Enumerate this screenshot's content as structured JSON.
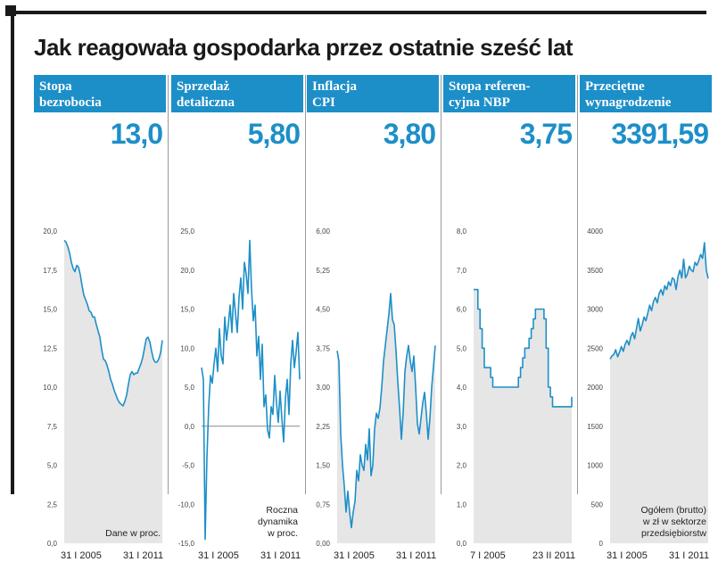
{
  "title": "Jak reagowała gospodarka przez ostatnie sześć lat",
  "colors": {
    "accent": "#1d8fc8",
    "area_fill": "#e6e6e6",
    "text": "#1a1a1a",
    "header_text": "#ffffff"
  },
  "panels": [
    {
      "header_lines": [
        "Stopa",
        "bezrobocia"
      ],
      "value": "13,0",
      "note_lines": [
        "Dane w proc."
      ],
      "x_labels": [
        "31 I 2005",
        "31 I 2011"
      ]
    },
    {
      "header_lines": [
        "Sprzedaż",
        "detaliczna"
      ],
      "value": "5,80",
      "note_lines": [
        "Roczna",
        "dynamika",
        "w proc."
      ],
      "x_labels": [
        "31 I 2005",
        "31 I 2011"
      ]
    },
    {
      "header_lines": [
        "Inflacja",
        "CPI"
      ],
      "value": "3,80",
      "note_lines": [],
      "x_labels": [
        "31 I 2005",
        "31 I 2011"
      ]
    },
    {
      "header_lines": [
        "Stopa referen-",
        "cyjna NBP"
      ],
      "value": "3,75",
      "note_lines": [],
      "x_labels": [
        "7 I 2005",
        "23 II 2011"
      ]
    },
    {
      "header_lines": [
        "Przeciętne",
        "wynagrodzenie"
      ],
      "value": "3391,59",
      "note_lines": [
        "Ogółem (brutto)",
        "w zł w sektorze",
        "przedsiębiorstw"
      ],
      "x_labels": [
        "31 I 2005",
        "31 I 2011"
      ]
    }
  ],
  "chart_data": [
    {
      "type": "area",
      "title": "Stopa bezrobocia",
      "ylim": [
        0,
        20
      ],
      "y_ticks": [
        "20,0",
        "17,5",
        "15,0",
        "12,5",
        "10,0",
        "7,5",
        "5,0",
        "2,5",
        "0,0"
      ],
      "baseline": null,
      "series": [
        {
          "values": [
            19.4,
            19.3,
            19.0,
            18.6,
            18.0,
            17.6,
            17.4,
            17.8,
            17.7,
            17.2,
            16.5,
            15.9,
            15.6,
            15.3,
            14.9,
            14.8,
            14.5,
            14.5,
            14.0,
            13.6,
            13.2,
            12.4,
            11.8,
            11.7,
            11.4,
            11.0,
            10.5,
            10.2,
            9.8,
            9.5,
            9.2,
            9.0,
            8.9,
            8.8,
            9.1,
            9.5,
            10.2,
            10.8,
            11.0,
            10.8,
            10.9,
            10.9,
            11.2,
            11.5,
            11.9,
            12.5,
            13.1,
            13.2,
            12.9,
            12.3,
            11.8,
            11.6,
            11.6,
            11.8,
            12.2,
            13.0
          ]
        }
      ],
      "x_tick_labels": [
        "31 I 2005",
        "31 I 2011"
      ]
    },
    {
      "type": "line",
      "title": "Sprzedaż detaliczna",
      "ylim": [
        -15,
        25
      ],
      "y_ticks": [
        "25,0",
        "20,0",
        "15,0",
        "10,0",
        "5,0",
        "0,0",
        "-5,0",
        "-10,0",
        "-15,0"
      ],
      "baseline": 0,
      "series": [
        {
          "values": [
            7.5,
            6.0,
            -14.5,
            -4.0,
            2.5,
            6.5,
            5.5,
            8.0,
            10.0,
            7.0,
            12.5,
            9.0,
            8.0,
            14.0,
            11.0,
            13.0,
            15.5,
            12.0,
            17.0,
            14.5,
            12.0,
            16.5,
            19.0,
            15.0,
            21.0,
            19.5,
            17.0,
            23.8,
            17.5,
            13.5,
            15.5,
            9.0,
            11.5,
            6.0,
            10.5,
            2.5,
            4.0,
            -0.5,
            -1.5,
            2.5,
            1.5,
            6.5,
            3.0,
            0.5,
            4.5,
            1.0,
            -2.0,
            3.5,
            6.0,
            1.5,
            8.0,
            11.0,
            7.5,
            9.5,
            12.0,
            6.0
          ]
        }
      ],
      "x_tick_labels": [
        "31 I 2005",
        "31 I 2011"
      ]
    },
    {
      "type": "area",
      "title": "Inflacja CPI",
      "ylim": [
        0,
        6
      ],
      "y_ticks": [
        "6,00",
        "5,25",
        "4,50",
        "3,75",
        "3,00",
        "2,25",
        "1,50",
        "0,75",
        "0,00"
      ],
      "baseline": null,
      "series": [
        {
          "values": [
            3.7,
            3.5,
            2.1,
            1.5,
            1.1,
            0.6,
            1.0,
            0.6,
            0.3,
            0.6,
            0.8,
            1.4,
            1.2,
            1.7,
            1.5,
            1.4,
            1.9,
            1.6,
            2.2,
            1.3,
            1.5,
            2.2,
            2.5,
            2.4,
            2.6,
            3.0,
            3.5,
            3.8,
            4.1,
            4.4,
            4.8,
            4.3,
            4.2,
            3.7,
            3.1,
            2.6,
            2.0,
            2.5,
            3.3,
            3.6,
            3.8,
            3.5,
            3.3,
            3.6,
            3.0,
            2.3,
            2.1,
            2.4,
            2.7,
            2.9,
            2.5,
            2.0,
            2.4,
            3.0,
            3.4,
            3.8
          ]
        }
      ],
      "x_tick_labels": [
        "31 I 2005",
        "31 I 2011"
      ]
    },
    {
      "type": "area",
      "title": "Stopa referencyjna NBP",
      "ylim": [
        0,
        8
      ],
      "y_ticks": [
        "8,0",
        "7,0",
        "6,0",
        "5,0",
        "4,0",
        "3,0",
        "2,0",
        "1,0",
        "0,0"
      ],
      "step": true,
      "baseline": null,
      "series": [
        {
          "values": [
            6.5,
            6.5,
            6.0,
            5.5,
            5.0,
            4.5,
            4.5,
            4.5,
            4.25,
            4.0,
            4.0,
            4.0,
            4.0,
            4.0,
            4.0,
            4.0,
            4.0,
            4.0,
            4.0,
            4.0,
            4.0,
            4.25,
            4.5,
            4.75,
            5.0,
            5.0,
            5.25,
            5.5,
            5.75,
            6.0,
            6.0,
            6.0,
            6.0,
            5.75,
            5.0,
            4.0,
            3.75,
            3.5,
            3.5,
            3.5,
            3.5,
            3.5,
            3.5,
            3.5,
            3.5,
            3.5,
            3.75
          ]
        }
      ],
      "x_tick_labels": [
        "7 I 2005",
        "23 II 2011"
      ]
    },
    {
      "type": "area",
      "title": "Przeciętne wynagrodzenie",
      "ylim": [
        0,
        4000
      ],
      "y_ticks": [
        "4000",
        "3500",
        "3000",
        "2500",
        "2000",
        "1500",
        "1000",
        "500",
        "0"
      ],
      "baseline": null,
      "series": [
        {
          "values": [
            2360,
            2400,
            2420,
            2480,
            2390,
            2450,
            2520,
            2460,
            2550,
            2600,
            2540,
            2650,
            2700,
            2620,
            2750,
            2880,
            2720,
            2800,
            2900,
            2850,
            2950,
            3050,
            2980,
            3100,
            3150,
            3080,
            3200,
            3250,
            3180,
            3300,
            3250,
            3350,
            3300,
            3400,
            3380,
            3250,
            3420,
            3500,
            3400,
            3640,
            3400,
            3450,
            3550,
            3500,
            3480,
            3600,
            3560,
            3620,
            3700,
            3650,
            3850,
            3500,
            3391.59
          ]
        }
      ],
      "x_tick_labels": [
        "31 I 2005",
        "31 I 2011"
      ]
    }
  ]
}
